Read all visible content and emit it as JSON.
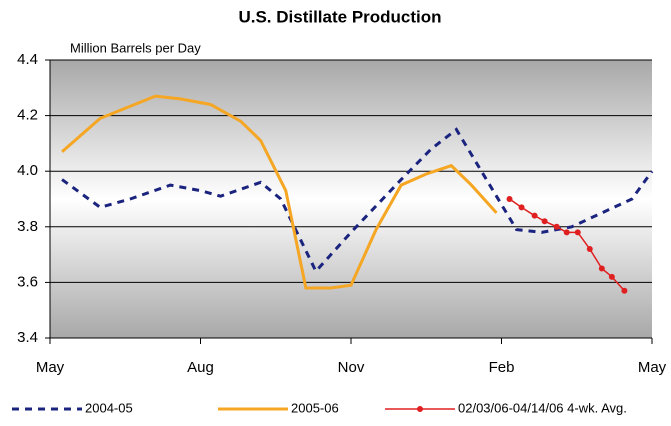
{
  "chart_data": {
    "type": "line",
    "title": "U.S. Distillate Production",
    "ylabel": "Million Barrels per Day",
    "xlim": [
      0,
      12
    ],
    "xticks": [
      {
        "value": 0,
        "label": "May"
      },
      {
        "value": 3,
        "label": "Aug"
      },
      {
        "value": 6,
        "label": "Nov"
      },
      {
        "value": 9,
        "label": "Feb"
      },
      {
        "value": 12,
        "label": "May"
      }
    ],
    "ylim": [
      3.4,
      4.4
    ],
    "yticks": [
      3.4,
      3.6,
      3.8,
      {
        "value": 4,
        "label": "4.0"
      },
      4.2,
      4.4
    ],
    "grid": true,
    "series": [
      {
        "name": "2004-05",
        "color": "#1a237e",
        "dash": true,
        "marker": false,
        "x": [
          0.24,
          1,
          1.6,
          2.4,
          3,
          3.4,
          4.2,
          4.6,
          5.3,
          6,
          7,
          7.6,
          8.1,
          8.6,
          9.3,
          9.8,
          10.4,
          11,
          11.6,
          12
        ],
        "values": [
          3.97,
          3.87,
          3.9,
          3.95,
          3.93,
          3.91,
          3.96,
          3.9,
          3.64,
          3.78,
          3.97,
          4.08,
          4.15,
          4.0,
          3.79,
          3.78,
          3.8,
          3.85,
          3.9,
          4.0
        ]
      },
      {
        "name": "2005-06",
        "color": "#f5a623",
        "dash": false,
        "marker": false,
        "x": [
          0.24,
          1,
          2.1,
          2.6,
          3.2,
          3.8,
          4.2,
          4.7,
          5.1,
          5.6,
          6,
          6.5,
          7,
          7.5,
          8,
          8.4,
          8.9
        ],
        "values": [
          4.07,
          4.19,
          4.27,
          4.26,
          4.24,
          4.18,
          4.11,
          3.93,
          3.58,
          3.58,
          3.59,
          3.79,
          3.95,
          3.99,
          4.02,
          3.95,
          3.85
        ]
      },
      {
        "name": "02/03/06-04/14/06  4-wk. Avg.",
        "color": "#e02020",
        "dash": false,
        "marker": true,
        "x": [
          9.16,
          9.4,
          9.66,
          9.86,
          10.1,
          10.3,
          10.52,
          10.76,
          11,
          11.2,
          11.45
        ],
        "values": [
          3.9,
          3.87,
          3.84,
          3.82,
          3.8,
          3.78,
          3.78,
          3.72,
          3.65,
          3.62,
          3.57
        ]
      }
    ]
  }
}
